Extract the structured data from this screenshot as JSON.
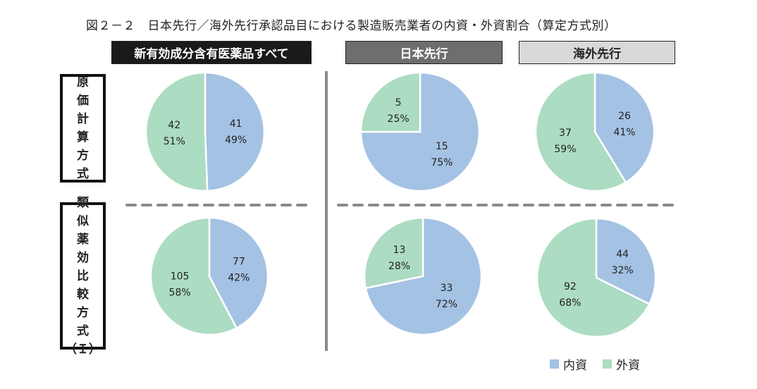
{
  "title": "図２－２　日本先行／海外先行承認品目における製造販売業者の内資・外資割合（算定方式別）",
  "column_headers": [
    "新有効成分含有医薬品すべて",
    "日本先行",
    "海外先行"
  ],
  "row_headers": [
    [
      "原",
      "価",
      "計",
      "算",
      "方",
      "式"
    ],
    [
      "類",
      "似",
      "薬",
      "効",
      "比",
      "較",
      "方",
      "式",
      "（Ｉ）"
    ]
  ],
  "legend": [
    {
      "label": "内資",
      "color": "#a4c2e4"
    },
    {
      "label": "外資",
      "color": "#acdcc1"
    }
  ],
  "chart_data": [
    {
      "type": "pie",
      "row": "原価計算方式",
      "column": "新有効成分含有医薬品すべて",
      "slices": [
        {
          "name": "内資",
          "value": 41,
          "pct": "49%"
        },
        {
          "name": "外資",
          "value": 42,
          "pct": "51%"
        }
      ]
    },
    {
      "type": "pie",
      "row": "原価計算方式",
      "column": "日本先行",
      "slices": [
        {
          "name": "内資",
          "value": 15,
          "pct": "75%"
        },
        {
          "name": "外資",
          "value": 5,
          "pct": "25%"
        }
      ]
    },
    {
      "type": "pie",
      "row": "原価計算方式",
      "column": "海外先行",
      "slices": [
        {
          "name": "内資",
          "value": 26,
          "pct": "41%"
        },
        {
          "name": "外資",
          "value": 37,
          "pct": "59%"
        }
      ]
    },
    {
      "type": "pie",
      "row": "類似薬効比較方式（Ｉ）",
      "column": "新有効成分含有医薬品すべて",
      "slices": [
        {
          "name": "内資",
          "value": 77,
          "pct": "42%"
        },
        {
          "name": "外資",
          "value": 105,
          "pct": "58%"
        }
      ]
    },
    {
      "type": "pie",
      "row": "類似薬効比較方式（Ｉ）",
      "column": "日本先行",
      "slices": [
        {
          "name": "内資",
          "value": 33,
          "pct": "72%"
        },
        {
          "name": "外資",
          "value": 13,
          "pct": "28%"
        }
      ]
    },
    {
      "type": "pie",
      "row": "類似薬効比較方式（Ｉ）",
      "column": "海外先行",
      "slices": [
        {
          "name": "内資",
          "value": 44,
          "pct": "32%"
        },
        {
          "name": "外資",
          "value": 92,
          "pct": "68%"
        }
      ]
    }
  ]
}
